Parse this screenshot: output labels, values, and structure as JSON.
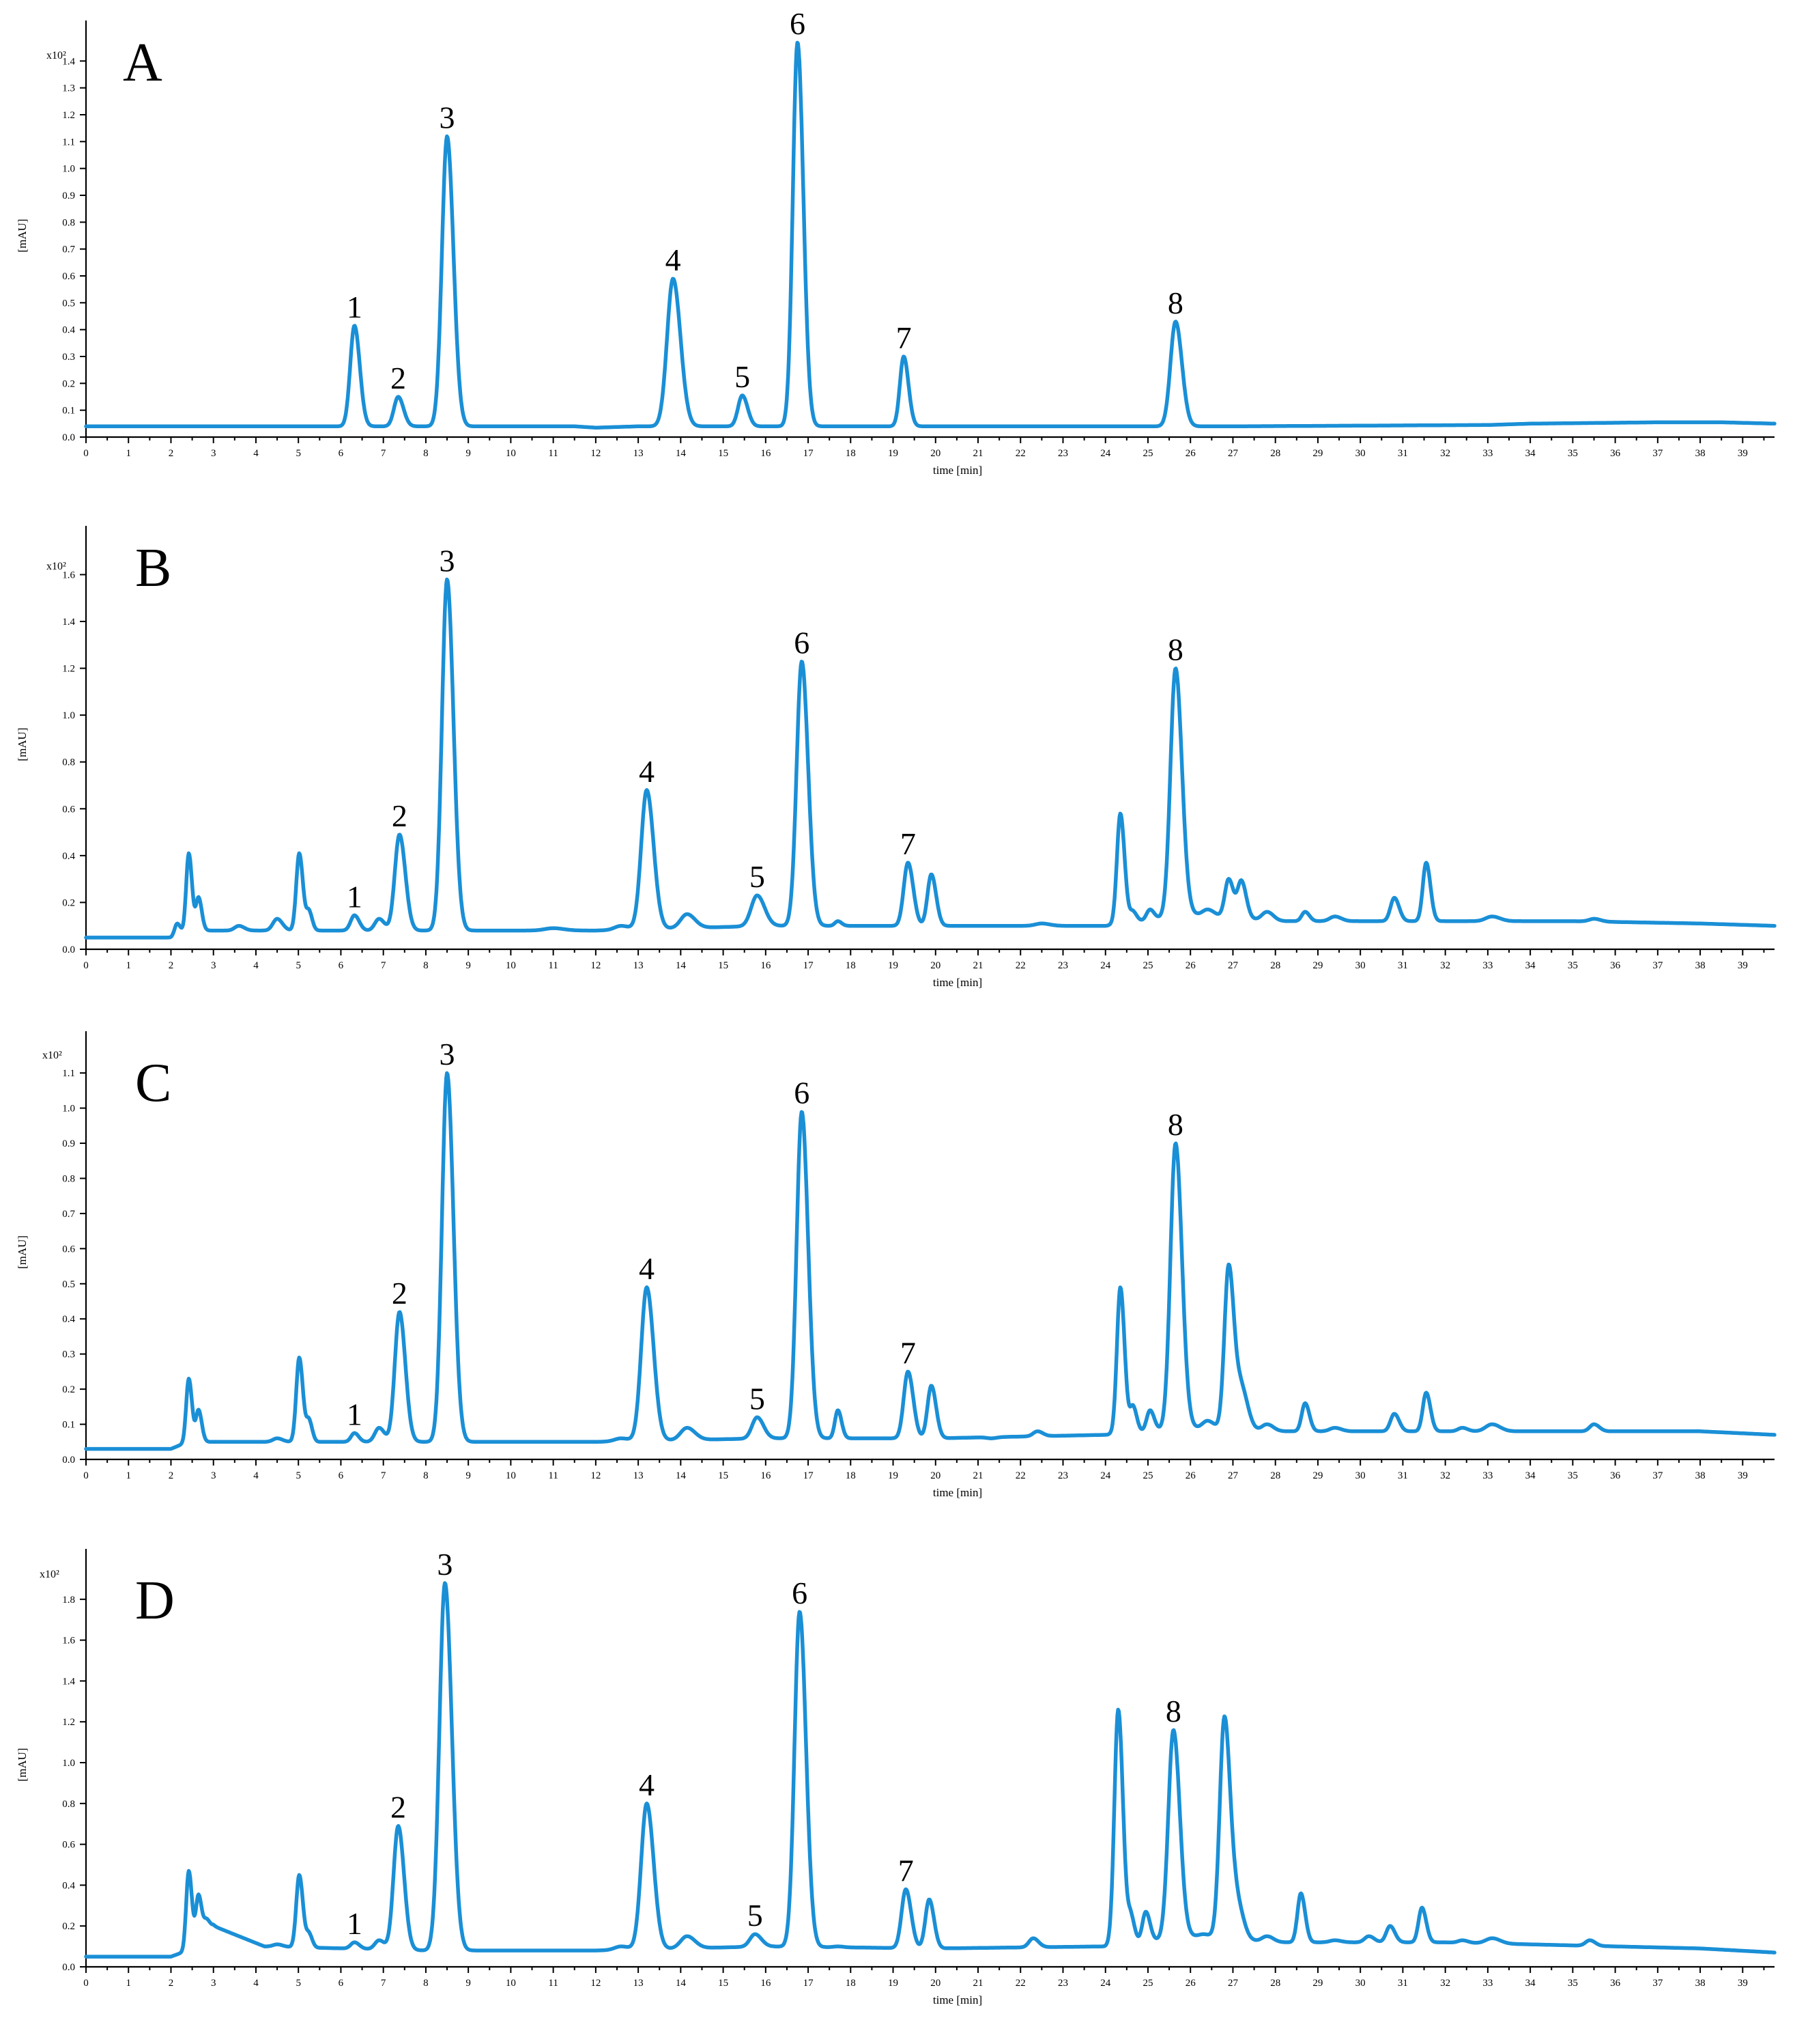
{
  "chart_data": [
    {
      "type": "line",
      "panel_label": "A",
      "xlabel": "time [min]",
      "ylabel": "[mAU]",
      "y_multiplier": "x10²",
      "xlim": [
        0,
        39.75
      ],
      "ylim": [
        0,
        1.5
      ],
      "x_ticks": [
        0,
        1,
        2,
        3,
        4,
        5,
        6,
        7,
        8,
        9,
        10,
        11,
        12,
        13,
        14,
        15,
        16,
        17,
        18,
        19,
        20,
        21,
        22,
        23,
        24,
        25,
        26,
        27,
        28,
        29,
        30,
        31,
        32,
        33,
        34,
        35,
        36,
        37,
        38,
        39
      ],
      "y_ticks": [
        0.0,
        0.1,
        0.2,
        0.3,
        0.4,
        0.5,
        0.6,
        0.7,
        0.8,
        0.9,
        1.0,
        1.1,
        1.2,
        1.3,
        1.4
      ],
      "y_tick_decimals": 1,
      "baseline": [
        [
          0,
          0.04
        ],
        [
          11.5,
          0.04
        ],
        [
          12,
          0.035
        ],
        [
          13,
          0.04
        ],
        [
          20,
          0.04
        ],
        [
          27,
          0.04
        ],
        [
          33,
          0.045
        ],
        [
          34,
          0.05
        ],
        [
          37,
          0.055
        ],
        [
          38.5,
          0.055
        ],
        [
          39.75,
          0.05
        ]
      ],
      "peaks": [
        {
          "label": "1",
          "t": 6.32,
          "height": 0.415,
          "width": 0.1
        },
        {
          "label": "2",
          "t": 7.35,
          "height": 0.15,
          "width": 0.1
        },
        {
          "label": "3",
          "t": 8.5,
          "height": 1.12,
          "width": 0.12
        },
        {
          "label": "4",
          "t": 13.82,
          "height": 0.59,
          "width": 0.14
        },
        {
          "label": "5",
          "t": 15.45,
          "height": 0.155,
          "width": 0.1
        },
        {
          "label": "6",
          "t": 16.75,
          "height": 1.47,
          "width": 0.11
        },
        {
          "label": "7",
          "t": 19.25,
          "height": 0.3,
          "width": 0.09
        },
        {
          "label": "8",
          "t": 25.65,
          "height": 0.43,
          "width": 0.12
        }
      ],
      "minor_peaks": []
    },
    {
      "type": "line",
      "panel_label": "B",
      "xlabel": "time [min]",
      "ylabel": "[mAU]",
      "y_multiplier": "x10²",
      "xlim": [
        0,
        39.75
      ],
      "ylim": [
        0,
        1.75
      ],
      "x_ticks": [
        0,
        1,
        2,
        3,
        4,
        5,
        6,
        7,
        8,
        9,
        10,
        11,
        12,
        13,
        14,
        15,
        16,
        17,
        18,
        19,
        20,
        21,
        22,
        23,
        24,
        25,
        26,
        27,
        28,
        29,
        30,
        31,
        32,
        33,
        34,
        35,
        36,
        37,
        38,
        39
      ],
      "y_ticks": [
        0.0,
        0.2,
        0.4,
        0.6,
        0.8,
        1.0,
        1.2,
        1.4,
        1.6
      ],
      "y_tick_decimals": 1,
      "baseline": [
        [
          0,
          0.05
        ],
        [
          2.0,
          0.05
        ],
        [
          2.4,
          0.08
        ],
        [
          8,
          0.08
        ],
        [
          12,
          0.08
        ],
        [
          16,
          0.1
        ],
        [
          20,
          0.1
        ],
        [
          24,
          0.1
        ],
        [
          26,
          0.15
        ],
        [
          28,
          0.12
        ],
        [
          32,
          0.12
        ],
        [
          35,
          0.12
        ],
        [
          38,
          0.11
        ],
        [
          39.75,
          0.1
        ]
      ],
      "peaks": [
        {
          "label": "1",
          "t": 6.32,
          "height": 0.145,
          "width": 0.09
        },
        {
          "label": "2",
          "t": 7.38,
          "height": 0.49,
          "width": 0.11
        },
        {
          "label": "3",
          "t": 8.5,
          "height": 1.58,
          "width": 0.12
        },
        {
          "label": "4",
          "t": 13.2,
          "height": 0.68,
          "width": 0.13
        },
        {
          "label": "5",
          "t": 15.8,
          "height": 0.23,
          "width": 0.14
        },
        {
          "label": "6",
          "t": 16.85,
          "height": 1.23,
          "width": 0.12
        },
        {
          "label": "7",
          "t": 19.35,
          "height": 0.37,
          "width": 0.1
        },
        {
          "label": "8",
          "t": 25.65,
          "height": 1.2,
          "width": 0.12
        }
      ],
      "minor_peaks": [
        {
          "t": 2.15,
          "height": 0.11,
          "width": 0.06
        },
        {
          "t": 2.42,
          "height": 0.41,
          "width": 0.06
        },
        {
          "t": 2.65,
          "height": 0.22,
          "width": 0.06
        },
        {
          "t": 3.6,
          "height": 0.1,
          "width": 0.1
        },
        {
          "t": 4.5,
          "height": 0.13,
          "width": 0.1
        },
        {
          "t": 5.02,
          "height": 0.41,
          "width": 0.07
        },
        {
          "t": 5.25,
          "height": 0.16,
          "width": 0.06
        },
        {
          "t": 6.9,
          "height": 0.13,
          "width": 0.1
        },
        {
          "t": 11.0,
          "height": 0.09,
          "width": 0.2
        },
        {
          "t": 12.6,
          "height": 0.1,
          "width": 0.15
        },
        {
          "t": 14.15,
          "height": 0.15,
          "width": 0.15
        },
        {
          "t": 17.7,
          "height": 0.12,
          "width": 0.07
        },
        {
          "t": 19.9,
          "height": 0.32,
          "width": 0.09
        },
        {
          "t": 21.3,
          "height": 0.1,
          "width": 0.1
        },
        {
          "t": 22.5,
          "height": 0.11,
          "width": 0.15
        },
        {
          "t": 24.35,
          "height": 0.58,
          "width": 0.08
        },
        {
          "t": 24.65,
          "height": 0.16,
          "width": 0.07
        },
        {
          "t": 25.05,
          "height": 0.17,
          "width": 0.08
        },
        {
          "t": 26.4,
          "height": 0.17,
          "width": 0.12
        },
        {
          "t": 26.9,
          "height": 0.3,
          "width": 0.09
        },
        {
          "t": 27.2,
          "height": 0.29,
          "width": 0.09
        },
        {
          "t": 27.8,
          "height": 0.16,
          "width": 0.12
        },
        {
          "t": 28.7,
          "height": 0.16,
          "width": 0.08
        },
        {
          "t": 29.4,
          "height": 0.14,
          "width": 0.12
        },
        {
          "t": 30.8,
          "height": 0.22,
          "width": 0.09
        },
        {
          "t": 31.55,
          "height": 0.37,
          "width": 0.08
        },
        {
          "t": 33.1,
          "height": 0.14,
          "width": 0.15
        },
        {
          "t": 35.5,
          "height": 0.13,
          "width": 0.12
        }
      ]
    },
    {
      "type": "line",
      "panel_label": "C",
      "xlabel": "time [min]",
      "ylabel": "[mAU]",
      "y_multiplier": "x10²",
      "xlim": [
        0,
        39.75
      ],
      "ylim": [
        0,
        1.18
      ],
      "x_ticks": [
        0,
        1,
        2,
        3,
        4,
        5,
        6,
        7,
        8,
        9,
        10,
        11,
        12,
        13,
        14,
        15,
        16,
        17,
        18,
        19,
        20,
        21,
        22,
        23,
        24,
        25,
        26,
        27,
        28,
        29,
        30,
        31,
        32,
        33,
        34,
        35,
        36,
        37,
        38,
        39
      ],
      "y_ticks": [
        0.0,
        0.1,
        0.2,
        0.3,
        0.4,
        0.5,
        0.6,
        0.7,
        0.8,
        0.9,
        1.0,
        1.1
      ],
      "y_tick_decimals": 1,
      "baseline": [
        [
          0,
          0.03
        ],
        [
          2.0,
          0.03
        ],
        [
          2.4,
          0.05
        ],
        [
          8,
          0.05
        ],
        [
          12,
          0.05
        ],
        [
          16,
          0.06
        ],
        [
          20,
          0.06
        ],
        [
          24,
          0.07
        ],
        [
          26,
          0.09
        ],
        [
          28,
          0.08
        ],
        [
          32,
          0.08
        ],
        [
          36,
          0.08
        ],
        [
          38,
          0.08
        ],
        [
          39.75,
          0.07
        ]
      ],
      "peaks": [
        {
          "label": "1",
          "t": 6.32,
          "height": 0.075,
          "width": 0.08
        },
        {
          "label": "2",
          "t": 7.38,
          "height": 0.42,
          "width": 0.11
        },
        {
          "label": "3",
          "t": 8.5,
          "height": 1.1,
          "width": 0.12
        },
        {
          "label": "4",
          "t": 13.2,
          "height": 0.49,
          "width": 0.13
        },
        {
          "label": "5",
          "t": 15.8,
          "height": 0.12,
          "width": 0.12
        },
        {
          "label": "6",
          "t": 16.85,
          "height": 0.99,
          "width": 0.12
        },
        {
          "label": "7",
          "t": 19.35,
          "height": 0.25,
          "width": 0.1
        },
        {
          "label": "8",
          "t": 25.65,
          "height": 0.9,
          "width": 0.12
        }
      ],
      "minor_peaks": [
        {
          "t": 2.42,
          "height": 0.23,
          "width": 0.06
        },
        {
          "t": 2.65,
          "height": 0.14,
          "width": 0.06
        },
        {
          "t": 4.5,
          "height": 0.06,
          "width": 0.1
        },
        {
          "t": 5.02,
          "height": 0.29,
          "width": 0.07
        },
        {
          "t": 5.25,
          "height": 0.11,
          "width": 0.06
        },
        {
          "t": 6.9,
          "height": 0.09,
          "width": 0.1
        },
        {
          "t": 12.6,
          "height": 0.06,
          "width": 0.15
        },
        {
          "t": 14.15,
          "height": 0.09,
          "width": 0.15
        },
        {
          "t": 17.7,
          "height": 0.14,
          "width": 0.07
        },
        {
          "t": 19.9,
          "height": 0.21,
          "width": 0.09
        },
        {
          "t": 21.3,
          "height": 0.06,
          "width": 0.1
        },
        {
          "t": 22.4,
          "height": 0.08,
          "width": 0.1
        },
        {
          "t": 24.35,
          "height": 0.49,
          "width": 0.08
        },
        {
          "t": 24.65,
          "height": 0.15,
          "width": 0.07
        },
        {
          "t": 25.05,
          "height": 0.14,
          "width": 0.08
        },
        {
          "t": 26.4,
          "height": 0.11,
          "width": 0.12
        },
        {
          "t": 26.9,
          "height": 0.55,
          "width": 0.1
        },
        {
          "t": 27.2,
          "height": 0.2,
          "width": 0.12
        },
        {
          "t": 27.8,
          "height": 0.1,
          "width": 0.12
        },
        {
          "t": 28.7,
          "height": 0.16,
          "width": 0.08
        },
        {
          "t": 29.4,
          "height": 0.09,
          "width": 0.12
        },
        {
          "t": 30.8,
          "height": 0.13,
          "width": 0.09
        },
        {
          "t": 31.55,
          "height": 0.19,
          "width": 0.08
        },
        {
          "t": 32.4,
          "height": 0.09,
          "width": 0.1
        },
        {
          "t": 33.1,
          "height": 0.1,
          "width": 0.15
        },
        {
          "t": 35.5,
          "height": 0.1,
          "width": 0.1
        }
      ]
    },
    {
      "type": "line",
      "panel_label": "D",
      "xlabel": "time [min]",
      "ylabel": "[mAU]",
      "y_multiplier": "x10²",
      "xlim": [
        0,
        39.75
      ],
      "ylim": [
        0,
        1.98
      ],
      "x_ticks": [
        0,
        1,
        2,
        3,
        4,
        5,
        6,
        7,
        8,
        9,
        10,
        11,
        12,
        13,
        14,
        15,
        16,
        17,
        18,
        19,
        20,
        21,
        22,
        23,
        24,
        25,
        26,
        27,
        28,
        29,
        30,
        31,
        32,
        33,
        34,
        35,
        36,
        37,
        38,
        39
      ],
      "y_ticks": [
        0.0,
        0.2,
        0.4,
        0.6,
        0.8,
        1.0,
        1.2,
        1.4,
        1.6,
        1.8
      ],
      "y_tick_decimals": 1,
      "baseline": [
        [
          0,
          0.05
        ],
        [
          2.0,
          0.05
        ],
        [
          2.4,
          0.08
        ],
        [
          3.0,
          0.2
        ],
        [
          3.6,
          0.15
        ],
        [
          4.2,
          0.1
        ],
        [
          8,
          0.08
        ],
        [
          12,
          0.08
        ],
        [
          16,
          0.1
        ],
        [
          20,
          0.09
        ],
        [
          24,
          0.1
        ],
        [
          26,
          0.15
        ],
        [
          28,
          0.12
        ],
        [
          32,
          0.12
        ],
        [
          36,
          0.1
        ],
        [
          38,
          0.09
        ],
        [
          39.75,
          0.07
        ]
      ],
      "peaks": [
        {
          "label": "1",
          "t": 6.32,
          "height": 0.12,
          "width": 0.09
        },
        {
          "label": "2",
          "t": 7.35,
          "height": 0.69,
          "width": 0.11
        },
        {
          "label": "3",
          "t": 8.45,
          "height": 1.88,
          "width": 0.13
        },
        {
          "label": "4",
          "t": 13.2,
          "height": 0.8,
          "width": 0.13
        },
        {
          "label": "5",
          "t": 15.75,
          "height": 0.16,
          "width": 0.12
        },
        {
          "label": "6",
          "t": 16.8,
          "height": 1.74,
          "width": 0.12
        },
        {
          "label": "7",
          "t": 19.3,
          "height": 0.38,
          "width": 0.1
        },
        {
          "label": "8",
          "t": 25.6,
          "height": 1.16,
          "width": 0.12
        }
      ],
      "minor_peaks": [
        {
          "t": 2.42,
          "height": 0.47,
          "width": 0.06
        },
        {
          "t": 2.65,
          "height": 0.35,
          "width": 0.06
        },
        {
          "t": 2.85,
          "height": 0.23,
          "width": 0.07
        },
        {
          "t": 4.5,
          "height": 0.11,
          "width": 0.1
        },
        {
          "t": 5.02,
          "height": 0.45,
          "width": 0.07
        },
        {
          "t": 5.25,
          "height": 0.16,
          "width": 0.06
        },
        {
          "t": 6.9,
          "height": 0.13,
          "width": 0.1
        },
        {
          "t": 12.6,
          "height": 0.1,
          "width": 0.15
        },
        {
          "t": 14.15,
          "height": 0.15,
          "width": 0.15
        },
        {
          "t": 17.7,
          "height": 0.1,
          "width": 0.1
        },
        {
          "t": 19.85,
          "height": 0.33,
          "width": 0.09
        },
        {
          "t": 22.3,
          "height": 0.14,
          "width": 0.1
        },
        {
          "t": 24.3,
          "height": 1.26,
          "width": 0.09
        },
        {
          "t": 24.6,
          "height": 0.24,
          "width": 0.07
        },
        {
          "t": 24.95,
          "height": 0.27,
          "width": 0.08
        },
        {
          "t": 26.3,
          "height": 0.16,
          "width": 0.12
        },
        {
          "t": 26.8,
          "height": 1.22,
          "width": 0.11
        },
        {
          "t": 27.1,
          "height": 0.3,
          "width": 0.12
        },
        {
          "t": 27.8,
          "height": 0.15,
          "width": 0.12
        },
        {
          "t": 28.6,
          "height": 0.36,
          "width": 0.08
        },
        {
          "t": 29.4,
          "height": 0.13,
          "width": 0.12
        },
        {
          "t": 30.2,
          "height": 0.15,
          "width": 0.1
        },
        {
          "t": 30.7,
          "height": 0.2,
          "width": 0.09
        },
        {
          "t": 31.45,
          "height": 0.29,
          "width": 0.08
        },
        {
          "t": 32.4,
          "height": 0.13,
          "width": 0.1
        },
        {
          "t": 33.1,
          "height": 0.14,
          "width": 0.15
        },
        {
          "t": 35.4,
          "height": 0.13,
          "width": 0.1
        }
      ]
    }
  ]
}
